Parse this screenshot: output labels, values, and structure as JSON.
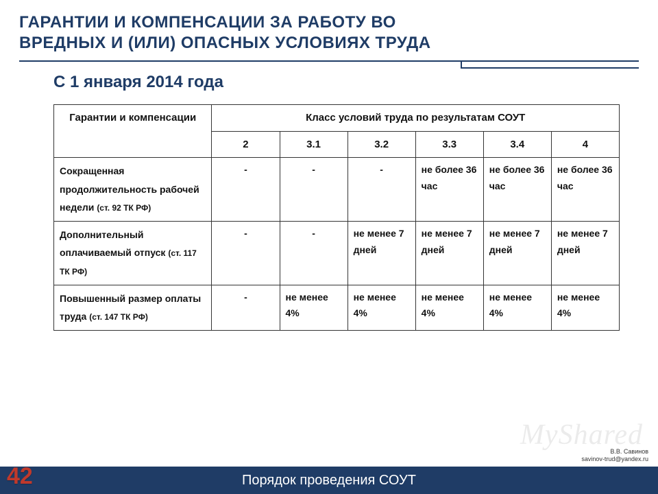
{
  "title_line1": "ГАРАНТИИ И КОМПЕНСАЦИИ ЗА РАБОТУ ВО",
  "title_line2": "ВРЕДНЫХ И (ИЛИ) ОПАСНЫХ УСЛОВИЯХ ТРУДА",
  "subtitle": "С 1 января 2014 года",
  "table": {
    "header_left": "Гарантии и компенсации",
    "header_right": "Класс условий труда по результатам СОУТ",
    "classes": [
      "2",
      "3.1",
      "3.2",
      "3.3",
      "3.4",
      "4"
    ],
    "rows": [
      {
        "label": "Сокращенная продолжительность рабочей недели ",
        "ref": "(ст. 92 ТК РФ)",
        "cells": [
          "-",
          "-",
          "-",
          "не более 36 час",
          "не более 36 час",
          "не более 36 час"
        ]
      },
      {
        "label": "Дополнительный оплачиваемый отпуск ",
        "ref": "(ст. 117 ТК РФ)",
        "cells": [
          "-",
          "-",
          "не менее 7 дней",
          "не менее 7 дней",
          "не менее 7 дней",
          "не менее 7 дней"
        ]
      },
      {
        "label": "Повышенный размер оплаты труда ",
        "ref": "(ст. 147 ТК РФ)",
        "cells": [
          "-",
          "не менее 4%",
          "не менее 4%",
          "не менее 4%",
          "не менее 4%",
          "не менее 4%"
        ]
      }
    ]
  },
  "footer": "Порядок проведения СОУТ",
  "page_number": "42",
  "credits_name": "В.В. Савинов",
  "credits_email": "savinov-trud@yandex.ru",
  "watermark": "MyShared",
  "colors": {
    "brand": "#1f3c66",
    "accent": "#c0392b",
    "text": "#111111",
    "border": "#333333",
    "bg": "#ffffff"
  }
}
